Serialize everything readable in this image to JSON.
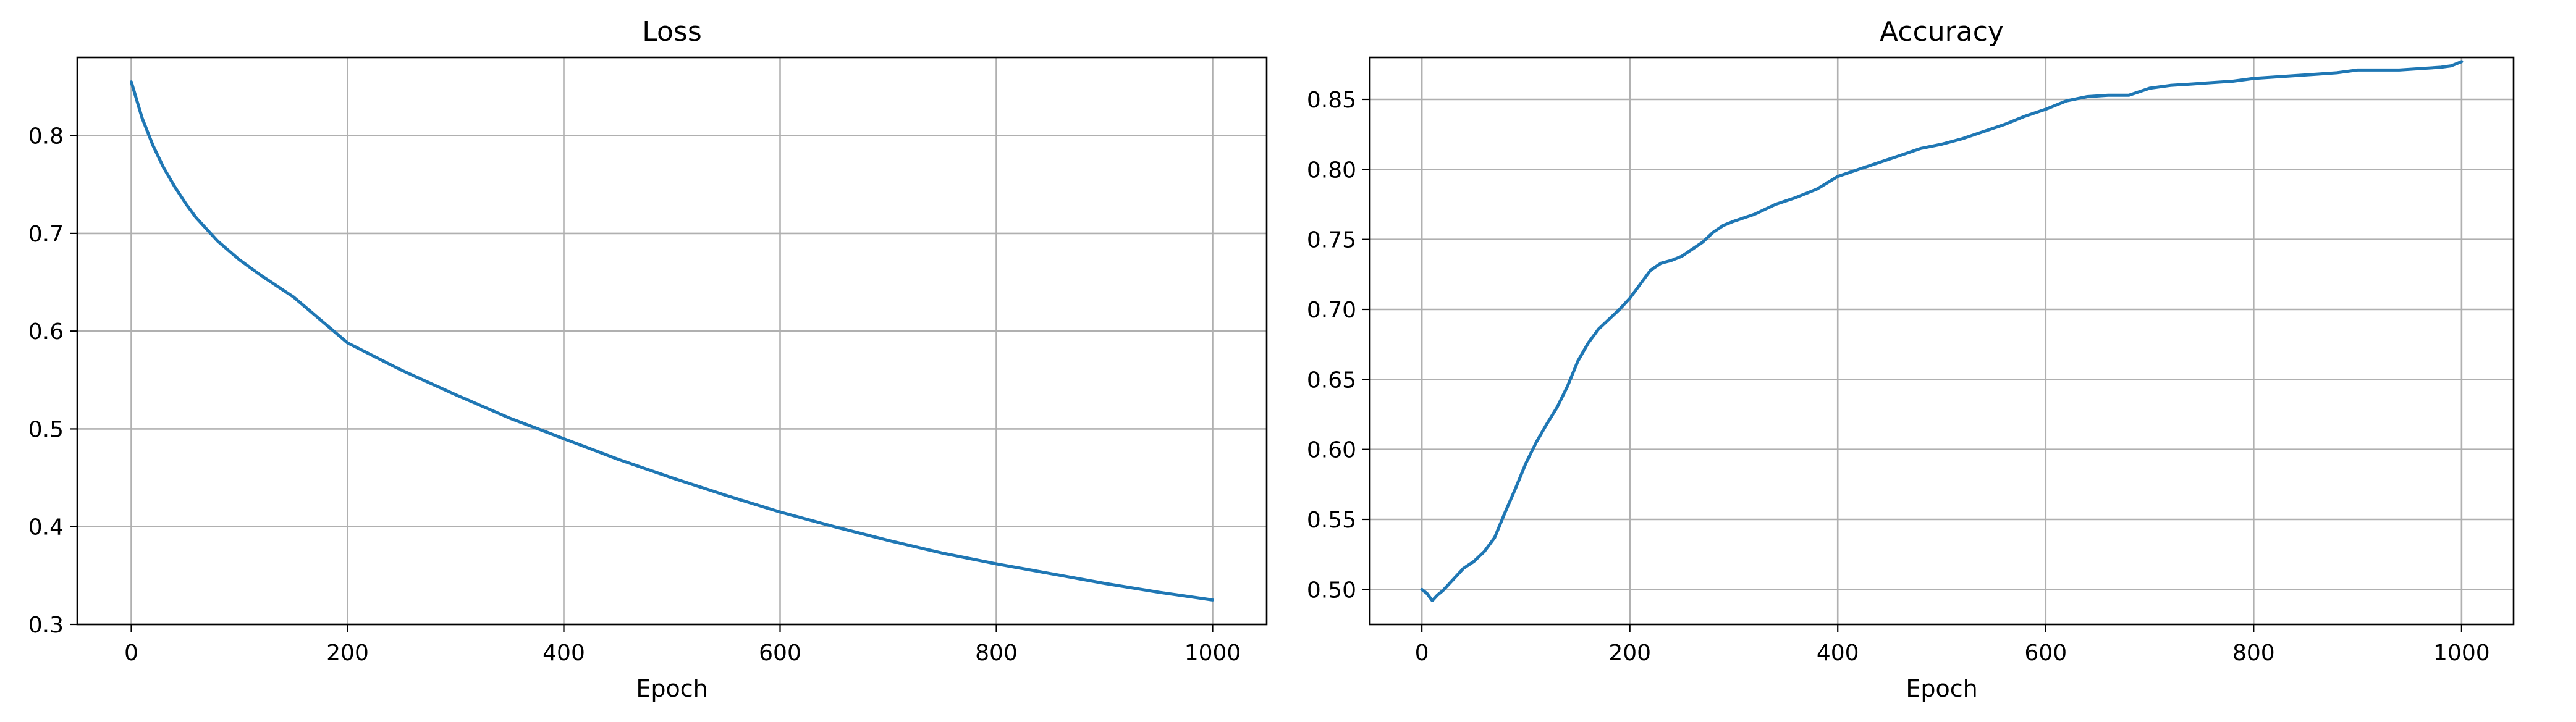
{
  "chart_data": [
    {
      "type": "line",
      "title": "Loss",
      "xlabel": "Epoch",
      "ylabel": "",
      "xlim": [
        -50,
        1050
      ],
      "ylim": [
        0.3,
        0.88
      ],
      "xticks": [
        0,
        200,
        400,
        600,
        800,
        1000
      ],
      "yticks": [
        0.3,
        0.4,
        0.5,
        0.6,
        0.7,
        0.8
      ],
      "grid": true,
      "series": [
        {
          "color": "#1f77b4",
          "x": [
            0,
            10,
            20,
            30,
            40,
            50,
            60,
            80,
            100,
            120,
            150,
            200,
            250,
            300,
            350,
            400,
            450,
            500,
            550,
            600,
            650,
            700,
            750,
            800,
            850,
            900,
            950,
            1000
          ],
          "y": [
            0.855,
            0.818,
            0.79,
            0.767,
            0.748,
            0.731,
            0.716,
            0.692,
            0.673,
            0.657,
            0.635,
            0.588,
            0.56,
            0.535,
            0.511,
            0.49,
            0.469,
            0.45,
            0.432,
            0.415,
            0.4,
            0.386,
            0.373,
            0.362,
            0.352,
            0.342,
            0.333,
            0.325
          ]
        }
      ]
    },
    {
      "type": "line",
      "title": "Accuracy",
      "xlabel": "Epoch",
      "ylabel": "",
      "xlim": [
        -50,
        1050
      ],
      "ylim": [
        0.475,
        0.88
      ],
      "xticks": [
        0,
        200,
        400,
        600,
        800,
        1000
      ],
      "yticks": [
        0.5,
        0.55,
        0.6,
        0.65,
        0.7,
        0.75,
        0.8,
        0.85
      ],
      "grid": true,
      "series": [
        {
          "color": "#1f77b4",
          "x": [
            0,
            5,
            10,
            15,
            20,
            30,
            40,
            50,
            60,
            70,
            80,
            90,
            100,
            110,
            120,
            130,
            140,
            150,
            160,
            170,
            180,
            190,
            200,
            210,
            220,
            230,
            240,
            250,
            260,
            270,
            280,
            290,
            300,
            320,
            340,
            360,
            380,
            400,
            420,
            440,
            460,
            480,
            500,
            520,
            540,
            560,
            580,
            600,
            620,
            640,
            660,
            680,
            700,
            720,
            740,
            760,
            780,
            800,
            820,
            840,
            860,
            880,
            900,
            920,
            940,
            960,
            980,
            990,
            1000
          ],
          "y": [
            0.5,
            0.497,
            0.492,
            0.496,
            0.499,
            0.507,
            0.515,
            0.52,
            0.527,
            0.537,
            0.555,
            0.572,
            0.59,
            0.605,
            0.618,
            0.63,
            0.645,
            0.663,
            0.676,
            0.686,
            0.693,
            0.7,
            0.708,
            0.718,
            0.728,
            0.733,
            0.735,
            0.738,
            0.743,
            0.748,
            0.755,
            0.76,
            0.763,
            0.768,
            0.775,
            0.78,
            0.786,
            0.795,
            0.8,
            0.805,
            0.81,
            0.815,
            0.818,
            0.822,
            0.827,
            0.832,
            0.838,
            0.843,
            0.849,
            0.852,
            0.853,
            0.853,
            0.858,
            0.86,
            0.861,
            0.862,
            0.863,
            0.865,
            0.866,
            0.867,
            0.868,
            0.869,
            0.871,
            0.871,
            0.871,
            0.872,
            0.873,
            0.874,
            0.877
          ]
        }
      ]
    }
  ]
}
